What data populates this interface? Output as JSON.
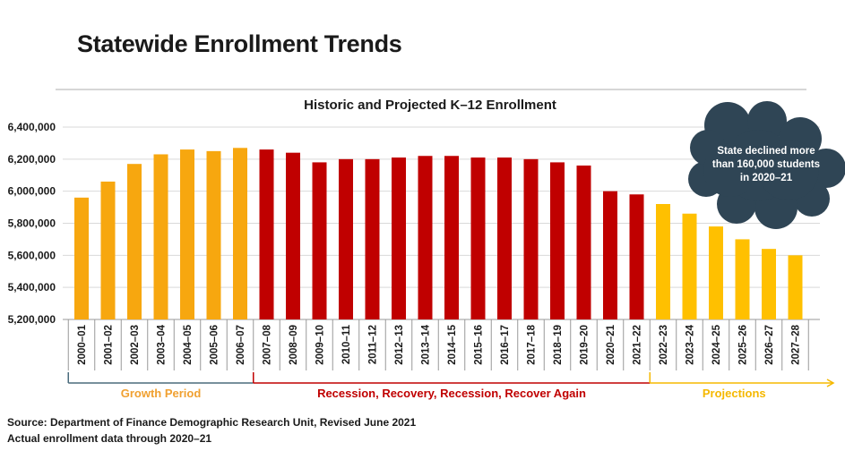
{
  "page_title": "Statewide Enrollment Trends",
  "chart_data": {
    "type": "bar",
    "title": "Historic and Projected K–12 Enrollment",
    "xlabel": "",
    "ylabel": "",
    "ylim": [
      5200000,
      6400000
    ],
    "yticks": [
      "5,200,000",
      "5,400,000",
      "5,600,000",
      "5,800,000",
      "6,000,000",
      "6,200,000",
      "6,400,000"
    ],
    "categories": [
      "2000–01",
      "2001–02",
      "2002–03",
      "2003–04",
      "2004–05",
      "2005–06",
      "2006–07",
      "2007–08",
      "2008–09",
      "2009–10",
      "2010–11",
      "2011–12",
      "2012–13",
      "2013–14",
      "2014–15",
      "2015–16",
      "2016–17",
      "2017–18",
      "2018–19",
      "2019–20",
      "2020–21",
      "2021–22",
      "2022–23",
      "2023–24",
      "2024–25",
      "2025–26",
      "2026–27",
      "2027–28"
    ],
    "values": [
      5960000,
      6060000,
      6170000,
      6230000,
      6260000,
      6250000,
      6270000,
      6260000,
      6240000,
      6180000,
      6200000,
      6200000,
      6210000,
      6220000,
      6220000,
      6210000,
      6210000,
      6200000,
      6180000,
      6160000,
      6000000,
      5980000,
      5920000,
      5860000,
      5780000,
      5700000,
      5640000,
      5600000
    ],
    "periods": [
      {
        "label": "Growth Period",
        "start": 0,
        "end": 6,
        "color": "#f7a70f"
      },
      {
        "label": "Recession, Recovery, Recession, Recover Again",
        "start": 7,
        "end": 21,
        "color": "#c00000"
      },
      {
        "label": "Projections",
        "start": 22,
        "end": 27,
        "color": "#ffc000"
      }
    ],
    "period_colors": {
      "growth_label": "#f0a030",
      "recession_label": "#c00000",
      "projection_label": "#f5b800",
      "growth_bracket": "#4a6b7c"
    },
    "annotation": "State declined more than 160,000 students in 2020–21",
    "annotation_lines": [
      "State declined more",
      "than 160,000 students",
      "in 2020–21"
    ],
    "annotation_color": "#2f4555",
    "grid": true
  },
  "source": {
    "line1": "Source: Department of Finance Demographic Research Unit, Revised June 2021",
    "line2": "Actual enrollment data through 2020–21"
  }
}
